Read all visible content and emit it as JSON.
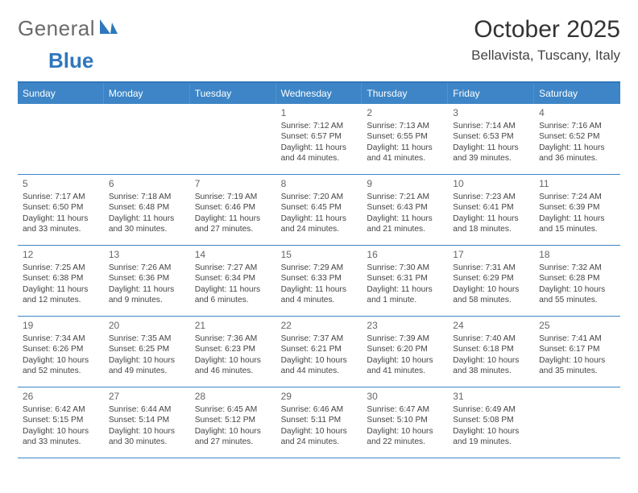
{
  "logo": {
    "text_general": "General",
    "text_blue": "Blue"
  },
  "title": "October 2025",
  "subtitle": "Bellavista, Tuscany, Italy",
  "colors": {
    "header_bg": "#3d85c6",
    "header_border": "#2f77bc",
    "text": "#333333",
    "subtext": "#444444"
  },
  "weekdays": [
    "Sunday",
    "Monday",
    "Tuesday",
    "Wednesday",
    "Thursday",
    "Friday",
    "Saturday"
  ],
  "first_weekday_index": 3,
  "days": [
    {
      "n": 1,
      "sunrise": "7:12 AM",
      "sunset": "6:57 PM",
      "daylight": "11 hours and 44 minutes."
    },
    {
      "n": 2,
      "sunrise": "7:13 AM",
      "sunset": "6:55 PM",
      "daylight": "11 hours and 41 minutes."
    },
    {
      "n": 3,
      "sunrise": "7:14 AM",
      "sunset": "6:53 PM",
      "daylight": "11 hours and 39 minutes."
    },
    {
      "n": 4,
      "sunrise": "7:16 AM",
      "sunset": "6:52 PM",
      "daylight": "11 hours and 36 minutes."
    },
    {
      "n": 5,
      "sunrise": "7:17 AM",
      "sunset": "6:50 PM",
      "daylight": "11 hours and 33 minutes."
    },
    {
      "n": 6,
      "sunrise": "7:18 AM",
      "sunset": "6:48 PM",
      "daylight": "11 hours and 30 minutes."
    },
    {
      "n": 7,
      "sunrise": "7:19 AM",
      "sunset": "6:46 PM",
      "daylight": "11 hours and 27 minutes."
    },
    {
      "n": 8,
      "sunrise": "7:20 AM",
      "sunset": "6:45 PM",
      "daylight": "11 hours and 24 minutes."
    },
    {
      "n": 9,
      "sunrise": "7:21 AM",
      "sunset": "6:43 PM",
      "daylight": "11 hours and 21 minutes."
    },
    {
      "n": 10,
      "sunrise": "7:23 AM",
      "sunset": "6:41 PM",
      "daylight": "11 hours and 18 minutes."
    },
    {
      "n": 11,
      "sunrise": "7:24 AM",
      "sunset": "6:39 PM",
      "daylight": "11 hours and 15 minutes."
    },
    {
      "n": 12,
      "sunrise": "7:25 AM",
      "sunset": "6:38 PM",
      "daylight": "11 hours and 12 minutes."
    },
    {
      "n": 13,
      "sunrise": "7:26 AM",
      "sunset": "6:36 PM",
      "daylight": "11 hours and 9 minutes."
    },
    {
      "n": 14,
      "sunrise": "7:27 AM",
      "sunset": "6:34 PM",
      "daylight": "11 hours and 6 minutes."
    },
    {
      "n": 15,
      "sunrise": "7:29 AM",
      "sunset": "6:33 PM",
      "daylight": "11 hours and 4 minutes."
    },
    {
      "n": 16,
      "sunrise": "7:30 AM",
      "sunset": "6:31 PM",
      "daylight": "11 hours and 1 minute."
    },
    {
      "n": 17,
      "sunrise": "7:31 AM",
      "sunset": "6:29 PM",
      "daylight": "10 hours and 58 minutes."
    },
    {
      "n": 18,
      "sunrise": "7:32 AM",
      "sunset": "6:28 PM",
      "daylight": "10 hours and 55 minutes."
    },
    {
      "n": 19,
      "sunrise": "7:34 AM",
      "sunset": "6:26 PM",
      "daylight": "10 hours and 52 minutes."
    },
    {
      "n": 20,
      "sunrise": "7:35 AM",
      "sunset": "6:25 PM",
      "daylight": "10 hours and 49 minutes."
    },
    {
      "n": 21,
      "sunrise": "7:36 AM",
      "sunset": "6:23 PM",
      "daylight": "10 hours and 46 minutes."
    },
    {
      "n": 22,
      "sunrise": "7:37 AM",
      "sunset": "6:21 PM",
      "daylight": "10 hours and 44 minutes."
    },
    {
      "n": 23,
      "sunrise": "7:39 AM",
      "sunset": "6:20 PM",
      "daylight": "10 hours and 41 minutes."
    },
    {
      "n": 24,
      "sunrise": "7:40 AM",
      "sunset": "6:18 PM",
      "daylight": "10 hours and 38 minutes."
    },
    {
      "n": 25,
      "sunrise": "7:41 AM",
      "sunset": "6:17 PM",
      "daylight": "10 hours and 35 minutes."
    },
    {
      "n": 26,
      "sunrise": "6:42 AM",
      "sunset": "5:15 PM",
      "daylight": "10 hours and 33 minutes."
    },
    {
      "n": 27,
      "sunrise": "6:44 AM",
      "sunset": "5:14 PM",
      "daylight": "10 hours and 30 minutes."
    },
    {
      "n": 28,
      "sunrise": "6:45 AM",
      "sunset": "5:12 PM",
      "daylight": "10 hours and 27 minutes."
    },
    {
      "n": 29,
      "sunrise": "6:46 AM",
      "sunset": "5:11 PM",
      "daylight": "10 hours and 24 minutes."
    },
    {
      "n": 30,
      "sunrise": "6:47 AM",
      "sunset": "5:10 PM",
      "daylight": "10 hours and 22 minutes."
    },
    {
      "n": 31,
      "sunrise": "6:49 AM",
      "sunset": "5:08 PM",
      "daylight": "10 hours and 19 minutes."
    }
  ],
  "labels": {
    "sunrise_prefix": "Sunrise: ",
    "sunset_prefix": "Sunset: ",
    "daylight_prefix": "Daylight: "
  }
}
